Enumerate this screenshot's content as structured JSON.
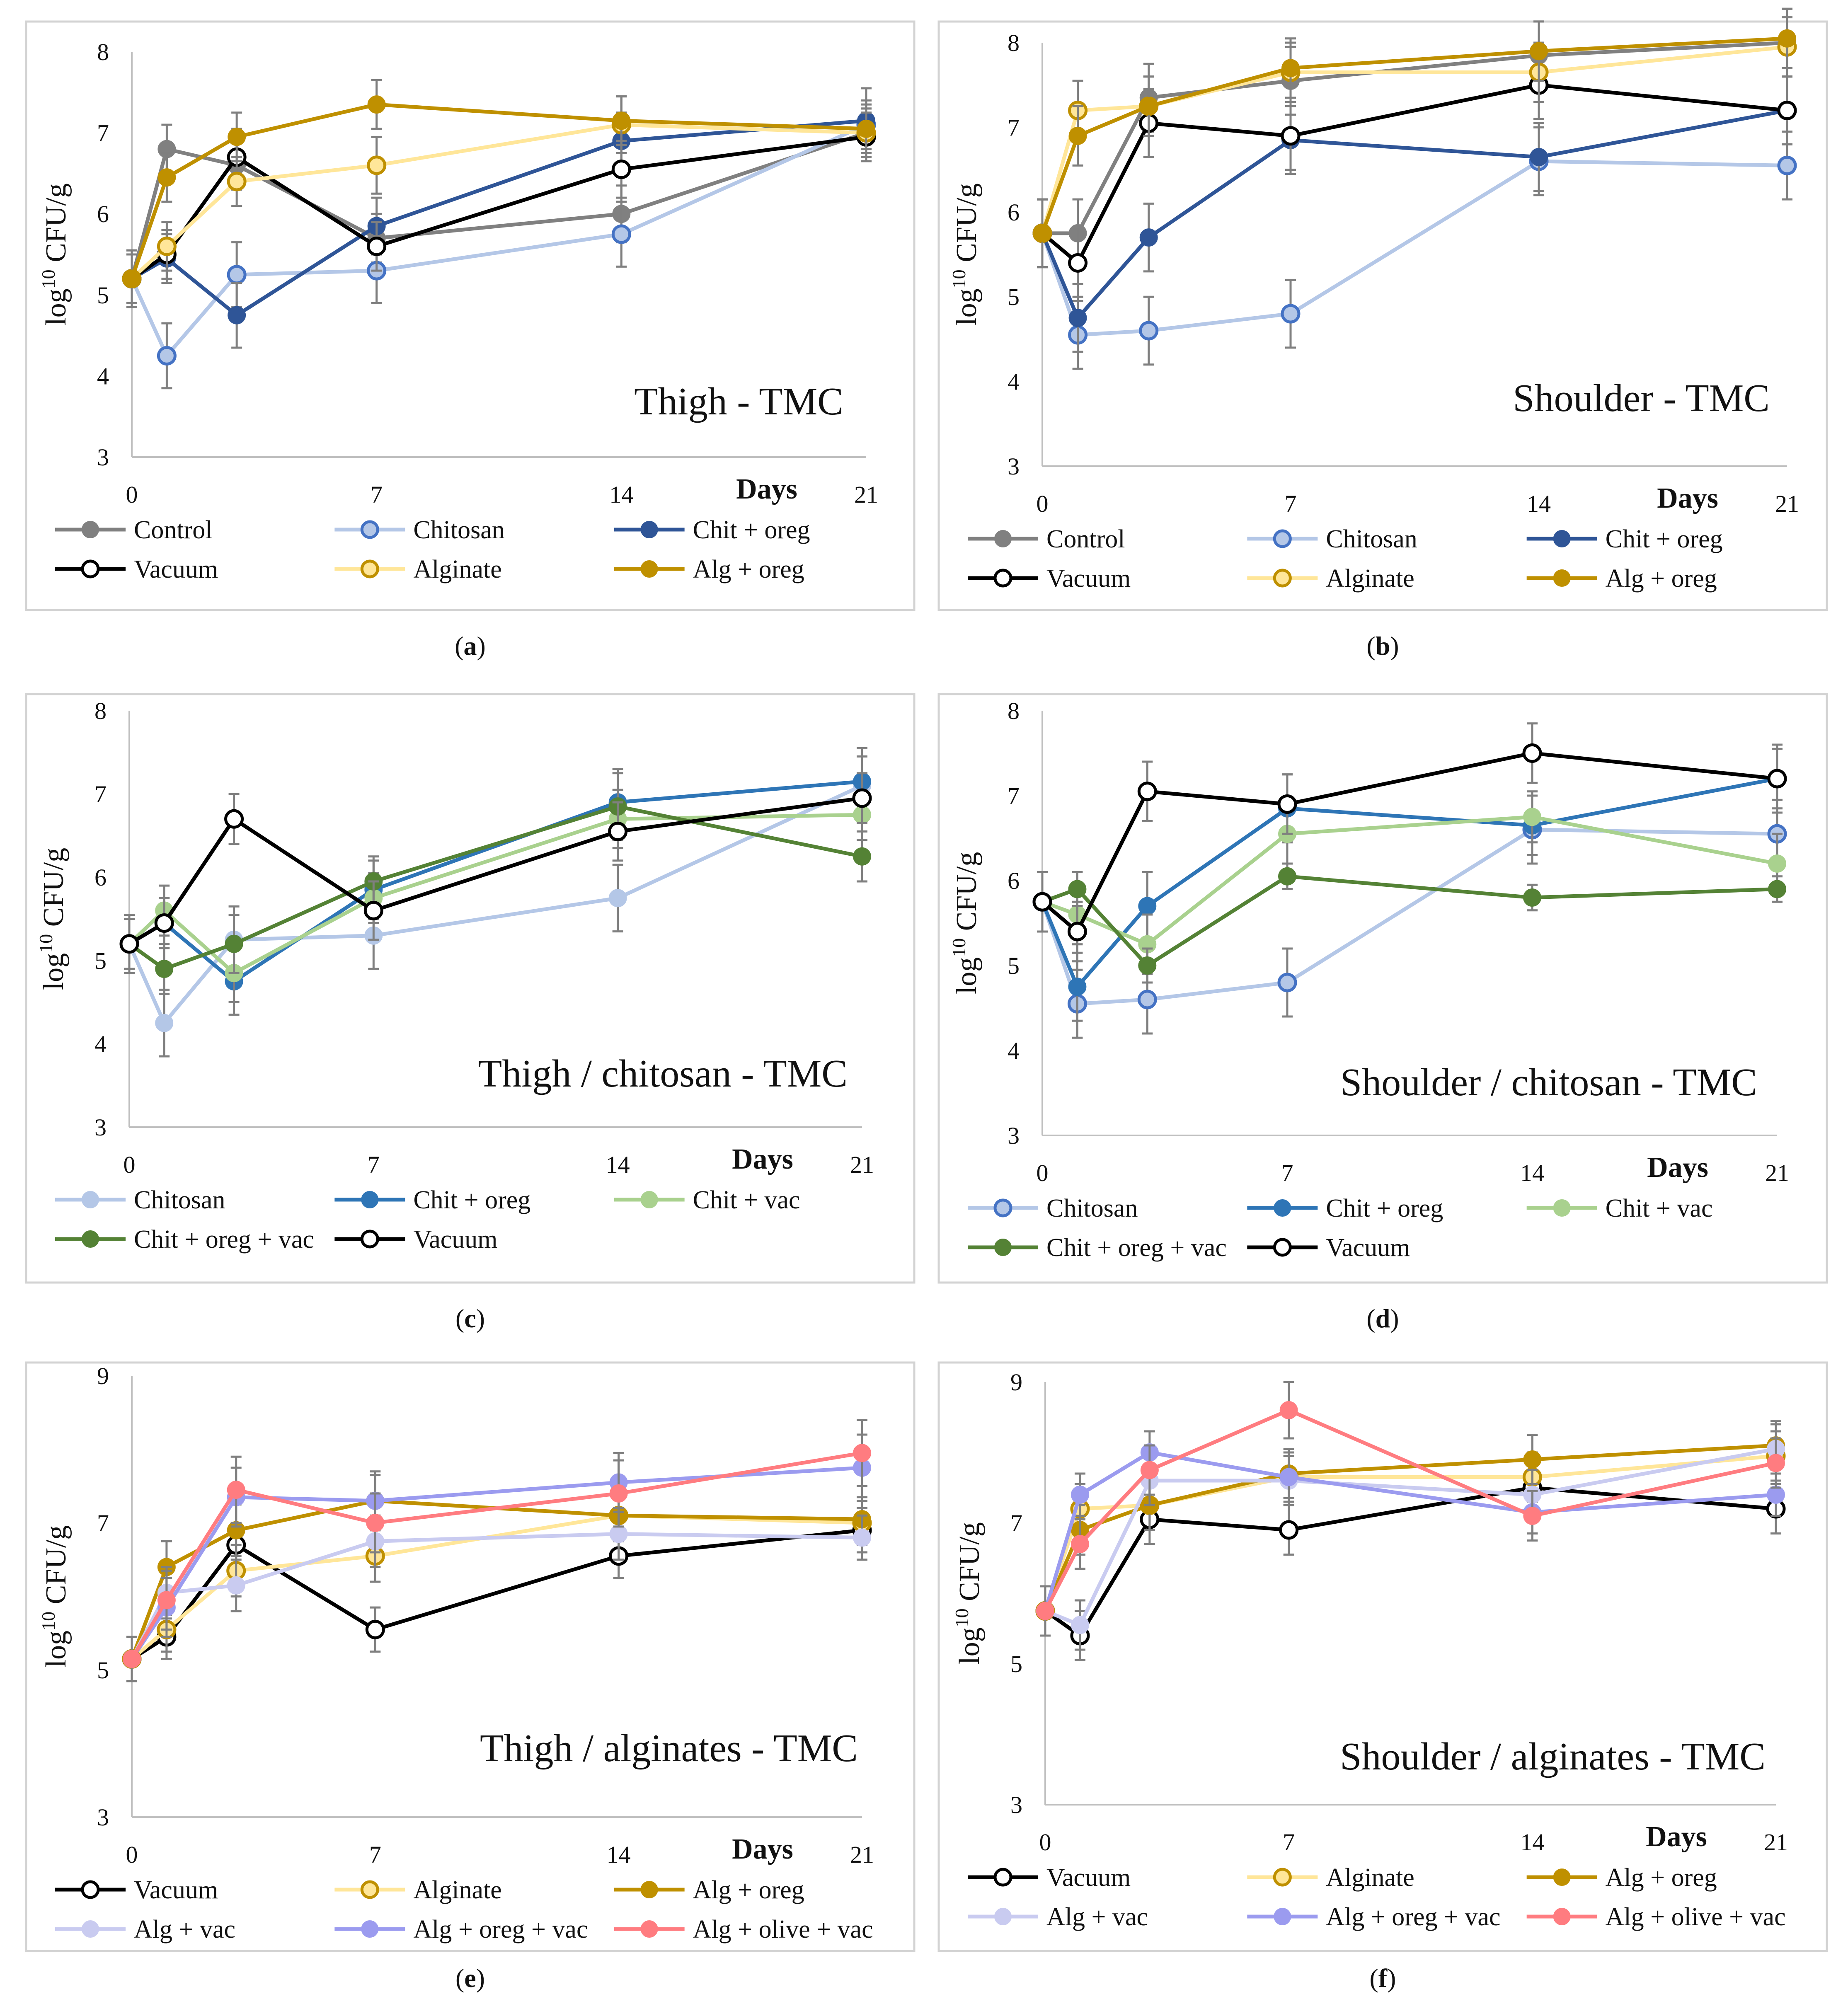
{
  "figure_captions": [
    "(a)",
    "(b)",
    "(c)",
    "(d)",
    "(e)",
    "(f)"
  ],
  "colors": {
    "Control": "#808080",
    "Chitosan": "#b4c7e7",
    "Chit + oreg (dark)": "#2f5597",
    "Chit + oreg (blue)": "#2e75b6",
    "Vacuum": "#000000",
    "Alginate": "#ffe699",
    "Alg + oreg": "#bf9000",
    "Chit + vac": "#a9d18e",
    "Chit + oreg + vac": "#548235",
    "Alg + vac": "#c9cbf0",
    "Alg + oreg + vac": "#9b9bef",
    "Alg + olive + vac": "#ff7c80"
  },
  "chart_data": [
    {
      "type": "line",
      "panel": "a",
      "title": "Thigh - TMC",
      "xlabel": "Days",
      "ylabel": "log10 CFU/g",
      "x": [
        0,
        1,
        3,
        7,
        14,
        21
      ],
      "xticks": [
        "0",
        "7",
        "14",
        "21"
      ],
      "xlim": [
        0,
        21
      ],
      "ylim": [
        3,
        8
      ],
      "yticks": [
        "3",
        "4",
        "5",
        "6",
        "7",
        "8"
      ],
      "legend_columns": 3,
      "series": [
        {
          "name": "Control",
          "color": "#808080",
          "marker": "filled",
          "values": [
            5.2,
            6.8,
            6.6,
            5.7,
            6.0,
            7.0
          ],
          "errors": [
            0.35,
            0.3,
            0.3,
            0.3,
            0.35,
            0.3
          ]
        },
        {
          "name": "Chitosan",
          "color": "#b4c7e7",
          "marker": "open",
          "values": [
            5.2,
            4.25,
            5.25,
            5.3,
            5.75,
            7.1
          ],
          "errors": [
            0.35,
            0.4,
            0.4,
            0.4,
            0.4,
            0.3
          ]
        },
        {
          "name": "Chit + oreg",
          "color": "#2f5597",
          "marker": "filled",
          "values": [
            5.2,
            5.45,
            4.75,
            5.85,
            6.9,
            7.15
          ],
          "errors": [
            0.3,
            0.3,
            0.4,
            0.35,
            0.35,
            0.4
          ]
        },
        {
          "name": "Vacuum",
          "color": "#000000",
          "marker": "open",
          "values": [
            5.2,
            5.5,
            6.7,
            5.6,
            6.55,
            6.95
          ],
          "errors": [
            0.3,
            0.3,
            0.35,
            0.3,
            0.35,
            0.3
          ]
        },
        {
          "name": "Alginate",
          "color": "#ffe699",
          "marker": "open",
          "values": [
            5.2,
            5.6,
            6.4,
            6.6,
            7.1,
            7.0
          ],
          "errors": [
            0.3,
            0.3,
            0.3,
            0.35,
            0.35,
            0.3
          ]
        },
        {
          "name": "Alg + oreg",
          "color": "#bf9000",
          "marker": "filled",
          "values": [
            5.2,
            6.45,
            6.95,
            7.35,
            7.15,
            7.05
          ],
          "errors": [
            0.3,
            0.3,
            0.3,
            0.3,
            0.3,
            0.3
          ]
        }
      ]
    },
    {
      "type": "line",
      "panel": "b",
      "title": "Shoulder - TMC",
      "xlabel": "Days",
      "ylabel": "log10 CFU/g",
      "x": [
        0,
        1,
        3,
        7,
        14,
        21
      ],
      "xticks": [
        "0",
        "7",
        "14",
        "21"
      ],
      "xlim": [
        0,
        21
      ],
      "ylim": [
        3,
        8
      ],
      "yticks": [
        "3",
        "4",
        "5",
        "6",
        "7",
        "8"
      ],
      "legend_columns": 3,
      "series": [
        {
          "name": "Control",
          "color": "#808080",
          "marker": "filled",
          "values": [
            5.75,
            5.75,
            7.35,
            7.55,
            7.85,
            8.0
          ],
          "errors": [
            0.4,
            0.4,
            0.4,
            0.4,
            0.4,
            0.4
          ]
        },
        {
          "name": "Chitosan",
          "color": "#b4c7e7",
          "marker": "open",
          "values": [
            5.75,
            4.55,
            4.6,
            4.8,
            6.6,
            6.55
          ],
          "errors": [
            0.4,
            0.4,
            0.4,
            0.4,
            0.4,
            0.4
          ]
        },
        {
          "name": "Chit + oreg",
          "color": "#2f5597",
          "marker": "filled",
          "values": [
            5.75,
            4.75,
            5.7,
            6.85,
            6.65,
            7.2
          ],
          "errors": [
            0.4,
            0.4,
            0.4,
            0.4,
            0.4,
            0.4
          ]
        },
        {
          "name": "Vacuum",
          "color": "#000000",
          "marker": "open",
          "values": [
            5.75,
            5.4,
            7.05,
            6.9,
            7.5,
            7.2
          ],
          "errors": [
            0.4,
            0.4,
            0.4,
            0.4,
            0.4,
            0.4
          ]
        },
        {
          "name": "Alginate",
          "color": "#ffe699",
          "marker": "open",
          "values": [
            5.75,
            7.2,
            7.25,
            7.65,
            7.65,
            7.95
          ],
          "errors": [
            0.4,
            0.35,
            0.35,
            0.35,
            0.35,
            0.35
          ]
        },
        {
          "name": "Alg + oreg",
          "color": "#bf9000",
          "marker": "filled",
          "values": [
            5.75,
            6.9,
            7.25,
            7.7,
            7.9,
            8.05
          ],
          "errors": [
            0.4,
            0.35,
            0.35,
            0.35,
            0.35,
            0.35
          ]
        }
      ]
    },
    {
      "type": "line",
      "panel": "c",
      "title": "Thigh / chitosan - TMC",
      "xlabel": "Days",
      "ylabel": "log10 CFU/g",
      "x": [
        0,
        1,
        3,
        7,
        14,
        21
      ],
      "xticks": [
        "0",
        "7",
        "14",
        "21"
      ],
      "xlim": [
        0,
        21
      ],
      "ylim": [
        3,
        8
      ],
      "yticks": [
        "3",
        "4",
        "5",
        "6",
        "7",
        "8"
      ],
      "legend_columns": 3,
      "series": [
        {
          "name": "Chitosan",
          "color": "#b4c7e7",
          "marker": "filled",
          "values": [
            5.2,
            4.25,
            5.25,
            5.3,
            5.75,
            7.1
          ],
          "errors": [
            0.35,
            0.4,
            0.4,
            0.4,
            0.4,
            0.35
          ]
        },
        {
          "name": "Chit + oreg",
          "color": "#2e75b6",
          "marker": "filled",
          "values": [
            5.2,
            5.45,
            4.75,
            5.85,
            6.9,
            7.15
          ],
          "errors": [
            0.3,
            0.3,
            0.4,
            0.35,
            0.4,
            0.4
          ]
        },
        {
          "name": "Chit + vac",
          "color": "#a9d18e",
          "marker": "filled",
          "values": [
            5.2,
            5.6,
            4.85,
            5.75,
            6.7,
            6.75
          ],
          "errors": [
            0.3,
            0.3,
            0.35,
            0.3,
            0.35,
            0.3
          ]
        },
        {
          "name": "Chit + oreg + vac",
          "color": "#548235",
          "marker": "filled",
          "values": [
            5.2,
            4.9,
            5.2,
            5.95,
            6.85,
            6.25
          ],
          "errors": [
            0.3,
            0.3,
            0.35,
            0.3,
            0.4,
            0.3
          ]
        },
        {
          "name": "Vacuum",
          "color": "#000000",
          "marker": "open",
          "values": [
            5.2,
            5.45,
            6.7,
            5.6,
            6.55,
            6.95
          ],
          "errors": [
            0.3,
            0.3,
            0.3,
            0.35,
            0.35,
            0.3
          ]
        }
      ]
    },
    {
      "type": "line",
      "panel": "d",
      "title": "Shoulder / chitosan - TMC",
      "xlabel": "Days",
      "ylabel": "log10 CFU/g",
      "x": [
        0,
        1,
        3,
        7,
        14,
        21
      ],
      "xticks": [
        "0",
        "7",
        "14",
        "21"
      ],
      "xlim": [
        0,
        21
      ],
      "ylim": [
        3,
        8
      ],
      "yticks": [
        "3",
        "4",
        "5",
        "6",
        "7",
        "8"
      ],
      "legend_columns": 3,
      "series": [
        {
          "name": "Chitosan",
          "color": "#b4c7e7",
          "marker": "open",
          "values": [
            5.75,
            4.55,
            4.6,
            4.8,
            6.6,
            6.55
          ],
          "errors": [
            0.35,
            0.4,
            0.4,
            0.4,
            0.4,
            0.4
          ]
        },
        {
          "name": "Chit + oreg",
          "color": "#2e75b6",
          "marker": "filled",
          "values": [
            5.75,
            4.75,
            5.7,
            6.85,
            6.65,
            7.2
          ],
          "errors": [
            0.35,
            0.4,
            0.4,
            0.4,
            0.35,
            0.4
          ]
        },
        {
          "name": "Chit + vac",
          "color": "#a9d18e",
          "marker": "filled",
          "values": [
            5.75,
            5.6,
            5.25,
            6.55,
            6.75,
            6.2
          ],
          "errors": [
            0.35,
            0.35,
            0.35,
            0.35,
            0.3,
            0.35
          ]
        },
        {
          "name": "Chit + oreg + vac",
          "color": "#548235",
          "marker": "filled",
          "values": [
            5.75,
            5.9,
            5.0,
            6.05,
            5.8,
            5.9
          ],
          "errors": [
            0.35,
            0.2,
            0.2,
            0.15,
            0.15,
            0.15
          ]
        },
        {
          "name": "Vacuum",
          "color": "#000000",
          "marker": "open",
          "values": [
            5.75,
            5.4,
            7.05,
            6.9,
            7.5,
            7.2
          ],
          "errors": [
            0.35,
            0.35,
            0.35,
            0.35,
            0.35,
            0.35
          ]
        }
      ]
    },
    {
      "type": "line",
      "panel": "e",
      "title": "Thigh / alginates - TMC",
      "xlabel": "Days",
      "ylabel": "log10 CFU/g",
      "x": [
        0,
        1,
        3,
        7,
        14,
        21
      ],
      "xticks": [
        "0",
        "7",
        "14",
        "21"
      ],
      "xlim": [
        0,
        21
      ],
      "ylim": [
        3,
        9
      ],
      "yticks": [
        "3",
        "5",
        "7",
        "9"
      ],
      "legend_columns": 3,
      "series": [
        {
          "name": "Vacuum",
          "color": "#000000",
          "marker": "open",
          "values": [
            5.15,
            5.45,
            6.7,
            5.55,
            6.55,
            6.9
          ],
          "errors": [
            0.3,
            0.3,
            0.3,
            0.3,
            0.3,
            0.3
          ]
        },
        {
          "name": "Alginate",
          "color": "#ffe699",
          "marker": "open",
          "values": [
            5.15,
            5.55,
            6.35,
            6.55,
            7.1,
            7.0
          ],
          "errors": [
            0.3,
            0.3,
            0.35,
            0.35,
            0.35,
            0.3
          ]
        },
        {
          "name": "Alg + oreg",
          "color": "#bf9000",
          "marker": "filled",
          "values": [
            5.15,
            6.4,
            6.9,
            7.3,
            7.1,
            7.05
          ],
          "errors": [
            0.3,
            0.35,
            0.35,
            0.35,
            0.35,
            0.3
          ]
        },
        {
          "name": "Alg + vac",
          "color": "#c9cbf0",
          "marker": "filled",
          "values": [
            5.15,
            6.05,
            6.15,
            6.75,
            6.85,
            6.8
          ],
          "errors": [
            0.3,
            0.35,
            0.35,
            0.35,
            0.35,
            0.3
          ]
        },
        {
          "name": "Alg + oreg + vac",
          "color": "#9b9bef",
          "marker": "filled",
          "values": [
            5.15,
            5.85,
            7.35,
            7.3,
            7.55,
            7.75
          ],
          "errors": [
            0.3,
            0.4,
            0.4,
            0.4,
            0.4,
            0.45
          ]
        },
        {
          "name": "Alg + olive + vac",
          "color": "#ff7c80",
          "marker": "filled",
          "values": [
            5.15,
            5.95,
            7.45,
            7.0,
            7.4,
            7.95
          ],
          "errors": [
            0.3,
            0.4,
            0.45,
            0.4,
            0.45,
            0.45
          ]
        }
      ]
    },
    {
      "type": "line",
      "panel": "f",
      "title": "Shoulder  / alginates - TMC",
      "xlabel": "Days",
      "ylabel": "log10 CFU/g",
      "x": [
        0,
        1,
        3,
        7,
        14,
        21
      ],
      "xticks": [
        "0",
        "7",
        "14",
        "21"
      ],
      "xlim": [
        0,
        21
      ],
      "ylim": [
        3,
        9
      ],
      "yticks": [
        "3",
        "5",
        "7",
        "9"
      ],
      "legend_columns": 3,
      "series": [
        {
          "name": "Vacuum",
          "color": "#000000",
          "marker": "open",
          "values": [
            5.75,
            5.4,
            7.05,
            6.9,
            7.5,
            7.2
          ],
          "errors": [
            0.35,
            0.35,
            0.35,
            0.35,
            0.35,
            0.35
          ]
        },
        {
          "name": "Alginate",
          "color": "#ffe699",
          "marker": "open",
          "values": [
            5.75,
            7.2,
            7.25,
            7.65,
            7.65,
            7.95
          ],
          "errors": [
            0.35,
            0.35,
            0.35,
            0.35,
            0.35,
            0.35
          ]
        },
        {
          "name": "Alg + oreg",
          "color": "#bf9000",
          "marker": "filled",
          "values": [
            5.75,
            6.9,
            7.25,
            7.7,
            7.9,
            8.1
          ],
          "errors": [
            0.35,
            0.35,
            0.35,
            0.35,
            0.35,
            0.35
          ]
        },
        {
          "name": "Alg + vac",
          "color": "#c9cbf0",
          "marker": "filled",
          "values": [
            5.75,
            5.55,
            7.6,
            7.6,
            7.4,
            8.05
          ],
          "errors": [
            0.35,
            0.35,
            0.35,
            0.35,
            0.35,
            0.35
          ]
        },
        {
          "name": "Alg + oreg + vac",
          "color": "#9b9bef",
          "marker": "filled",
          "values": [
            5.75,
            7.4,
            8.0,
            7.65,
            7.15,
            7.4
          ],
          "errors": [
            0.35,
            0.3,
            0.3,
            0.3,
            0.3,
            0.3
          ]
        },
        {
          "name": "Alg + olive + vac",
          "color": "#ff7c80",
          "marker": "filled",
          "values": [
            5.75,
            6.7,
            7.75,
            8.6,
            7.1,
            7.85
          ],
          "errors": [
            0.35,
            0.35,
            0.35,
            0.4,
            0.35,
            0.35
          ]
        }
      ]
    }
  ]
}
